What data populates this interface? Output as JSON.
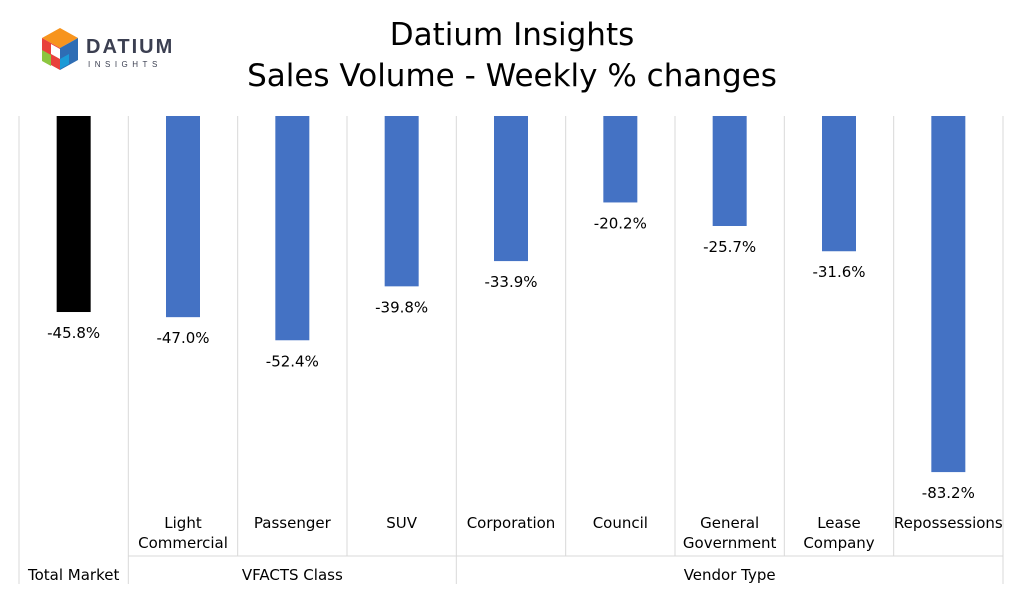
{
  "logo": {
    "brand": "DATIUM",
    "sub": "INSIGHTS",
    "icon": "datium-cube-icon"
  },
  "title": "Datium Insights",
  "subtitle": "Sales Volume - Weekly % changes",
  "colors": {
    "total": "#000000",
    "bars": "#4472C4",
    "grid": "#D9D9D9"
  },
  "chart_data": {
    "type": "bar",
    "categories": [
      "",
      "Light\nCommercial",
      "Passenger",
      "SUV",
      "Corporation",
      "Council",
      "General\nGovernment",
      "Lease\nCompany",
      "Repossessions"
    ],
    "groups": [
      {
        "label": "Total Market",
        "start": 0,
        "end": 0
      },
      {
        "label": "VFACTS Class",
        "start": 1,
        "end": 3
      },
      {
        "label": "Vendor Type",
        "start": 4,
        "end": 8
      }
    ],
    "values": [
      -45.8,
      -47.0,
      -52.4,
      -39.8,
      -33.9,
      -20.2,
      -25.7,
      -31.6,
      -83.2
    ],
    "data_labels": [
      "-45.8%",
      "-47.0%",
      "-52.4%",
      "-39.8%",
      "-33.9%",
      "-20.2%",
      "-25.7%",
      "-31.6%",
      "-83.2%"
    ],
    "ylim": [
      -100,
      0
    ],
    "grid": "vertical category separators",
    "legend": "none"
  }
}
